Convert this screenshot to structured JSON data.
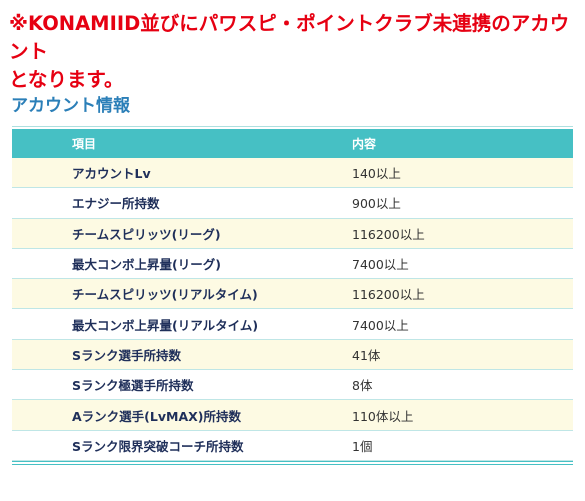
{
  "notice": {
    "line1": "※KONAMIID並びにパワスピ・ポイントクラブ未連携のアカウント",
    "line2": "となります。"
  },
  "section_title": "アカウント情報",
  "table": {
    "headers": {
      "item": "項目",
      "value": "内容"
    },
    "rows": [
      {
        "item": "アカウントLv",
        "value": "140以上"
      },
      {
        "item": "エナジー所持数",
        "value": "900以上"
      },
      {
        "item": "チームスピリッツ(リーグ)",
        "value": "116200以上"
      },
      {
        "item": "最大コンボ上昇量(リーグ)",
        "value": "7400以上"
      },
      {
        "item": "チームスピリッツ(リアルタイム)",
        "value": "116200以上"
      },
      {
        "item": "最大コンボ上昇量(リアルタイム)",
        "value": "7400以上"
      },
      {
        "item": "Sランク選手所持数",
        "value": "41体"
      },
      {
        "item": "Sランク極選手所持数",
        "value": "8体"
      },
      {
        "item": "Aランク選手(LvMAX)所持数",
        "value": "110体以上"
      },
      {
        "item": "Sランク限界突破コーチ所持数",
        "value": "1個"
      }
    ]
  },
  "colors": {
    "notice": "#e60012",
    "section_title": "#2b7fb8",
    "header_bg": "#46c0c4",
    "row_alt_bg": "#fdfae3",
    "item_text": "#1f2f5a"
  }
}
